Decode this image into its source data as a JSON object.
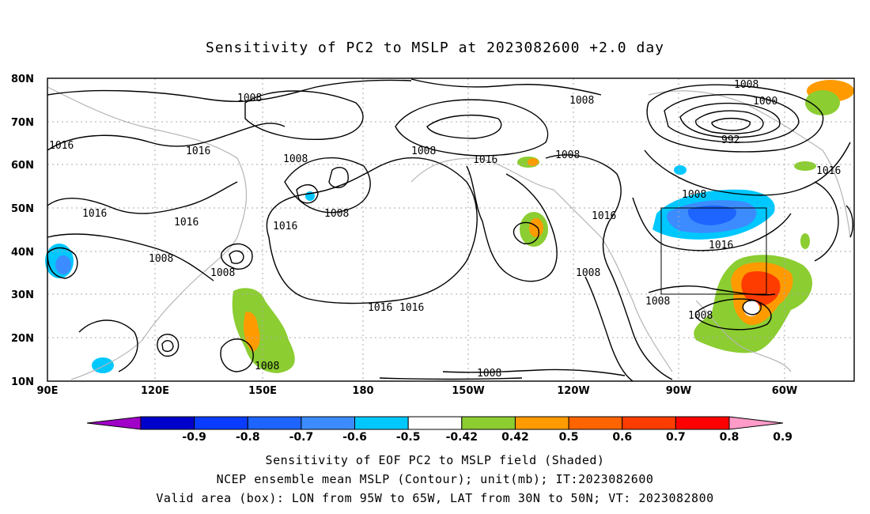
{
  "title": "Sensitivity of PC2 to MSLP at 2023082600 +2.0 day",
  "map": {
    "lon_labels": [
      "90E",
      "120E",
      "150E",
      "180",
      "150W",
      "120W",
      "90W",
      "60W"
    ],
    "lat_labels": [
      "80N",
      "70N",
      "60N",
      "50N",
      "40N",
      "30N",
      "20N",
      "10N"
    ],
    "contour_labels": [
      "1008",
      "1016",
      "1016",
      "1008",
      "1016",
      "1016",
      "1008",
      "1008",
      "1016",
      "1008",
      "1008",
      "1016",
      "1008",
      "1008",
      "1016",
      "1016",
      "1008",
      "1016",
      "1008",
      "1000",
      "992",
      "1016",
      "1008",
      "1016",
      "1008",
      "1008",
      "1008",
      "1008"
    ],
    "valid_box": {
      "lon_from": -95,
      "lon_to": -65,
      "lat_from": 30,
      "lat_to": 50
    }
  },
  "colorbar": {
    "labels": [
      "-0.9",
      "-0.8",
      "-0.7",
      "-0.6",
      "-0.5",
      "-0.42",
      "0.42",
      "0.5",
      "0.6",
      "0.7",
      "0.8",
      "0.9"
    ],
    "colors": [
      "#a000c8",
      "#0000cd",
      "#0a3cff",
      "#1e64ff",
      "#3c8cff",
      "#00c8ff",
      "#ffffff",
      "#8ccd32",
      "#ff9b00",
      "#ff6400",
      "#ff3c00",
      "#ff0000",
      "#ff9bc8"
    ]
  },
  "footer": {
    "line1": "Sensitivity of EOF PC2 to MSLP field (Shaded)",
    "line2": "NCEP ensemble mean MSLP (Contour); unit(mb); IT:2023082600",
    "line3": "Valid area (box): LON from 95W to 65W, LAT from 30N to 50N; VT: 2023082800"
  }
}
